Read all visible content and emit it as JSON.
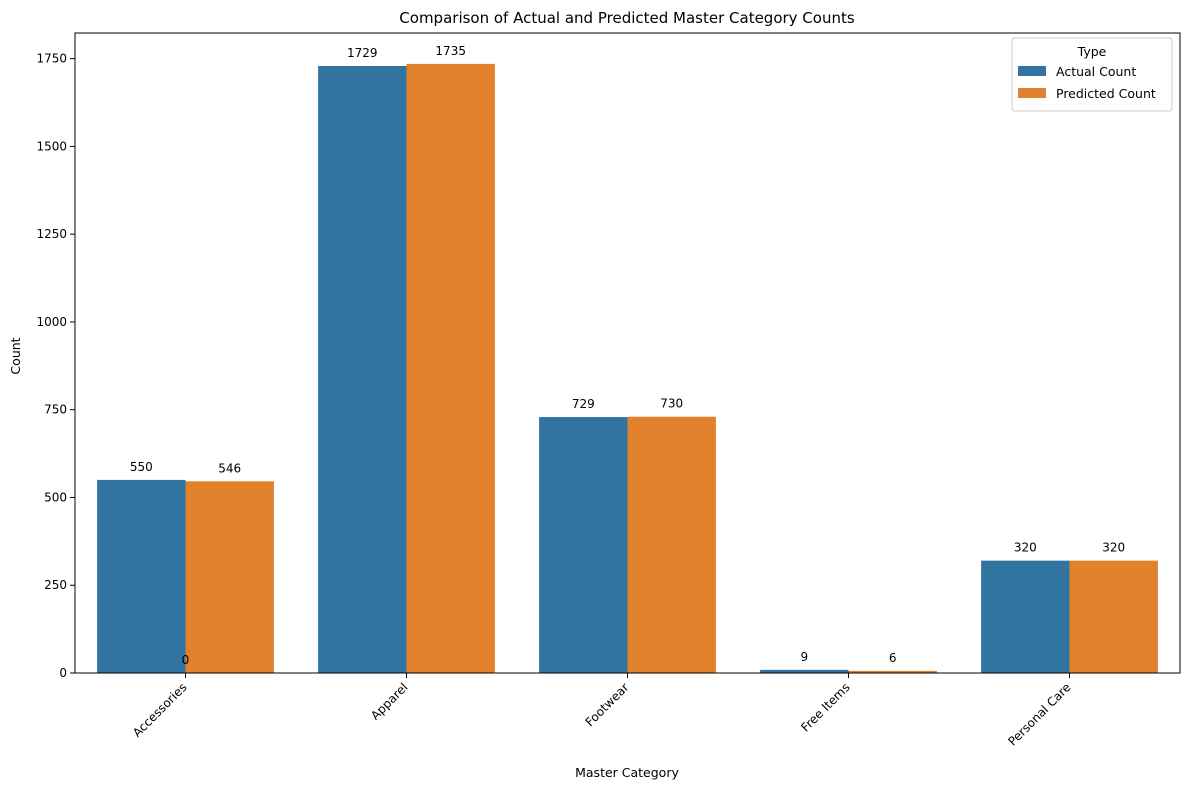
{
  "chart_data": {
    "type": "bar",
    "title": "Comparison of Actual and Predicted Master Category Counts",
    "xlabel": "Master Category",
    "ylabel": "Count",
    "categories": [
      "Accessories",
      "Apparel",
      "Footwear",
      "Free Items",
      "Personal Care"
    ],
    "series": [
      {
        "name": "Actual Count",
        "values": [
          550,
          1729,
          729,
          9,
          320
        ],
        "color": "#3274a1"
      },
      {
        "name": "Predicted Count",
        "values": [
          546,
          1735,
          730,
          6,
          320
        ],
        "color": "#e1812c"
      }
    ],
    "extra_labels": [
      {
        "category": "Accessories",
        "value": 0
      }
    ],
    "ylim": [
      0,
      1823
    ],
    "yticks": [
      0,
      250,
      500,
      750,
      1000,
      1250,
      1500,
      1750
    ],
    "legend": {
      "title": "Type",
      "placement": "top-right"
    },
    "grid": false
  }
}
